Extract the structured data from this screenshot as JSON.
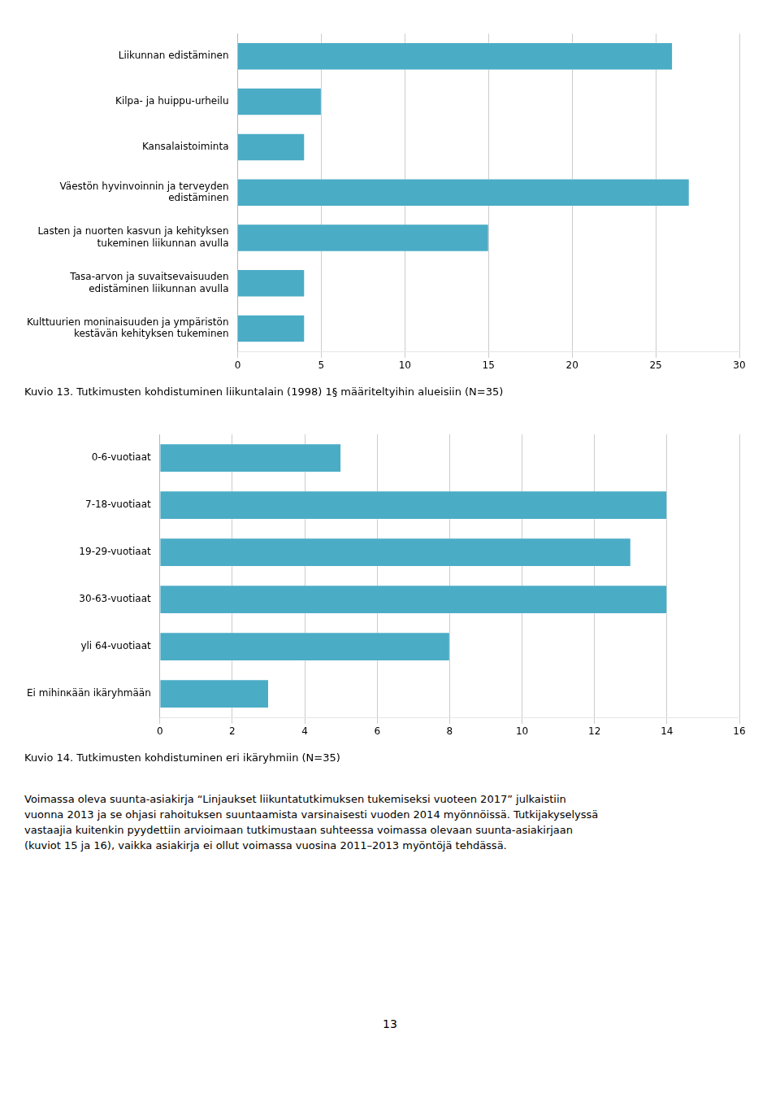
{
  "chart_data": [
    {
      "type": "bar",
      "orientation": "horizontal",
      "title": "Kuvio 13. Tutkimusten kohdistuminen liikuntalain (1998) 1§ määriteltyihin alueisiin (N=35)",
      "categories": [
        "Liikunnan edistäminen",
        "Kilpa- ja huippu-urheilu",
        "Kansalaistoiminta",
        "Väestön hyvinvoinnin ja terveyden\nedistäminen",
        "Lasten ja nuorten kasvun ja kehityksen\ntukeminen liikunnan avulla",
        "Tasa-arvon ja suvaitsevaisuuden\nedistäminen liikunnan avulla",
        "Kulttuurien moninaisuuden ja ympäristön\nkestävän kehityksen tukeminen"
      ],
      "values": [
        26,
        5,
        4,
        27,
        15,
        4,
        4
      ],
      "color": "#4BACC6",
      "xlim": [
        0,
        30
      ],
      "xticks": [
        0,
        5,
        10,
        15,
        20,
        25,
        30
      ],
      "grid": true
    },
    {
      "type": "bar",
      "orientation": "horizontal",
      "title": "Kuvio 14. Tutkimusten kohdistuminen eri ikäryhmiin (N=35)",
      "categories": [
        "0-6-vuotiaat",
        "7-18-vuotiaat",
        "19-29-vuotiaat",
        "30-63-vuotiaat",
        "yli 64-vuotiaat",
        "Ei mihinкään ikäryhmään"
      ],
      "values": [
        5,
        14,
        13,
        14,
        8,
        3
      ],
      "color": "#4BACC6",
      "xlim": [
        0,
        16
      ],
      "xticks": [
        0,
        2,
        4,
        6,
        8,
        10,
        12,
        14,
        16
      ],
      "grid": true,
      "annotations": [
        "Voimassa oleva suunta-asiakirja “Linjaukset liikuntatutkimuksen tukemiseksi vuoteen 2017” julkaistiin\nvuonna 2013 ja se ohjasi rahoituksen suuntaamista varsinaisesti vuoden 2014 myönnöissä. Tutkijakyselyssä\nvastaajia kuitenkin pyydettiin arvioimaan tutkimustaan suhteessa voimassa olevaan suunta-asiakirjaan\n(kuviot 15 ja 16), vaikka asiakirja ei ollut voimassa vuosina 2011–2013 myöntöjä tehdässä.",
        "13"
      ]
    }
  ]
}
